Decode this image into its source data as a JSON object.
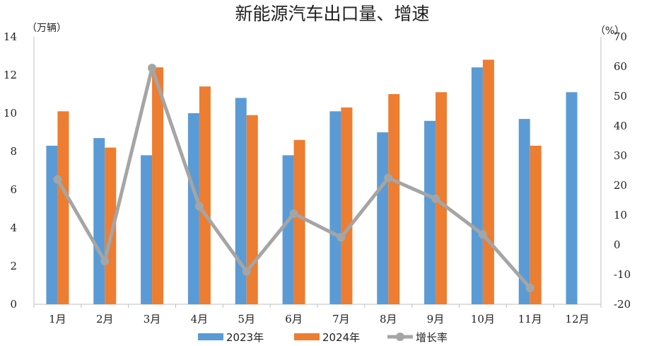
{
  "chart_data": {
    "type": "bar",
    "title": "新能源汽车出口量、增速",
    "left_unit": "（万辆）",
    "right_unit": "（%）",
    "categories": [
      "1月",
      "2月",
      "3月",
      "4月",
      "5月",
      "6月",
      "7月",
      "8月",
      "9月",
      "10月",
      "11月",
      "12月"
    ],
    "series": [
      {
        "name": "2023年",
        "type": "bar",
        "axis": "left",
        "color": "#5b9bd5",
        "values": [
          8.3,
          8.7,
          7.8,
          10.0,
          10.8,
          7.8,
          10.1,
          9.0,
          9.6,
          12.4,
          9.7,
          11.1
        ]
      },
      {
        "name": "2024年",
        "type": "bar",
        "axis": "left",
        "color": "#ed7d31",
        "values": [
          10.1,
          8.2,
          12.4,
          11.4,
          9.9,
          8.6,
          10.3,
          11.0,
          11.1,
          12.8,
          8.3,
          null
        ]
      },
      {
        "name": "增长率",
        "type": "line",
        "axis": "right",
        "color": "#a5a5a5",
        "values": [
          22,
          -5.5,
          59.5,
          13,
          -9,
          10.5,
          2.5,
          22.5,
          15.5,
          3.5,
          -14.5,
          null
        ]
      }
    ],
    "left_ylim": [
      0,
      14
    ],
    "left_ticks": [
      0,
      2,
      4,
      6,
      8,
      10,
      12,
      14
    ],
    "right_ylim": [
      -20,
      70
    ],
    "right_ticks": [
      -20,
      -10,
      0,
      10,
      20,
      30,
      40,
      50,
      60,
      70
    ],
    "negative_tick_color": "#ff0000",
    "grid": false,
    "legend_position": "bottom"
  }
}
